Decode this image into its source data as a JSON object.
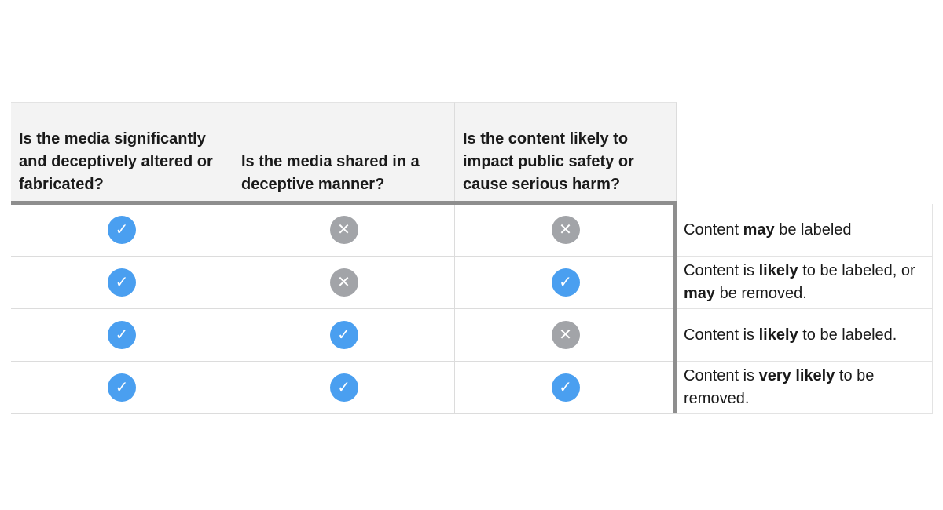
{
  "headers": [
    "Is the media significantly and deceptively altered or fabricated?",
    "Is the media shared in a deceptive manner?",
    "Is the content likely to impact public safety or cause serious harm?"
  ],
  "colors": {
    "check": "#4a9ff0",
    "cross": "#a2a4a8",
    "header_bg": "#f3f3f3"
  },
  "rows": [
    {
      "answers": [
        "check-icon",
        "x-icon",
        "x-icon"
      ],
      "outcome": [
        {
          "text": "Content ",
          "bold": false
        },
        {
          "text": "may",
          "bold": true
        },
        {
          "text": " be labeled",
          "bold": false
        }
      ]
    },
    {
      "answers": [
        "check-icon",
        "x-icon",
        "check-icon"
      ],
      "outcome": [
        {
          "text": "Content is ",
          "bold": false
        },
        {
          "text": "likely",
          "bold": true
        },
        {
          "text": " to be labeled, or ",
          "bold": false
        },
        {
          "text": "may",
          "bold": true
        },
        {
          "text": " be removed.",
          "bold": false
        }
      ]
    },
    {
      "answers": [
        "check-icon",
        "check-icon",
        "x-icon"
      ],
      "outcome": [
        {
          "text": "Content is ",
          "bold": false
        },
        {
          "text": "likely",
          "bold": true
        },
        {
          "text": " to be labeled.",
          "bold": false
        }
      ]
    },
    {
      "answers": [
        "check-icon",
        "check-icon",
        "check-icon"
      ],
      "outcome": [
        {
          "text": "Content is ",
          "bold": false
        },
        {
          "text": "very likely",
          "bold": true
        },
        {
          "text": " to be removed.",
          "bold": false
        }
      ]
    }
  ]
}
